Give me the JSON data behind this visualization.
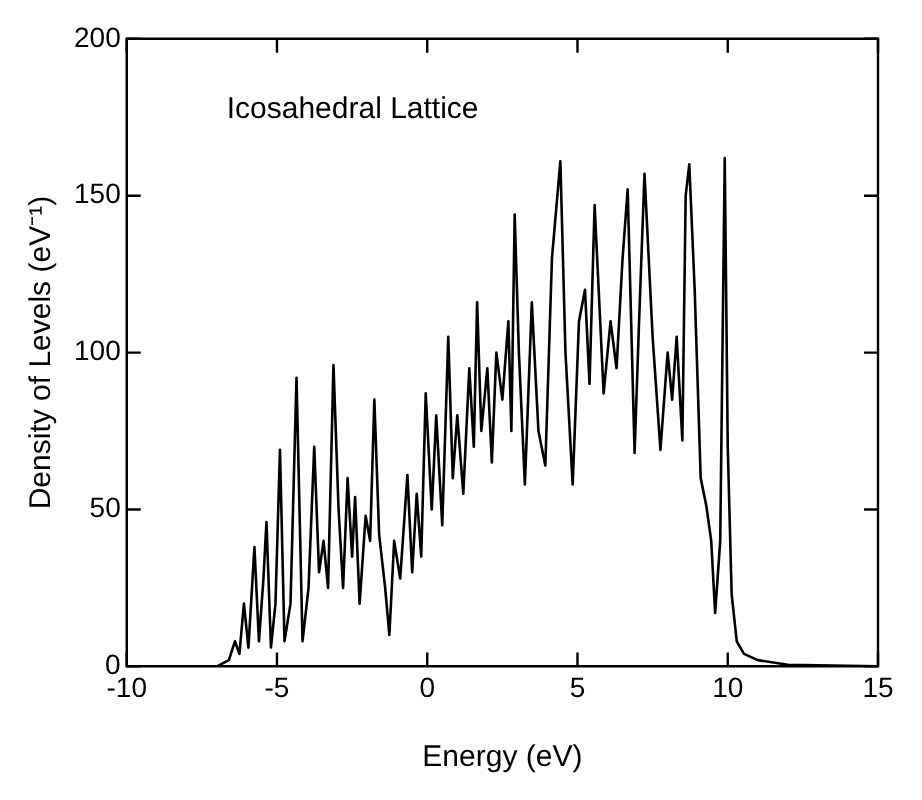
{
  "chart_data": {
    "type": "line",
    "xlabel": "Energy (eV)",
    "ylabel": "Density of Levels (eV⁻¹)",
    "annotations": [
      "Icosahedral Lattice"
    ],
    "xlim": [
      -10,
      15
    ],
    "xticks": [
      -10,
      -5,
      0,
      5,
      10,
      15
    ],
    "ylim": [
      0,
      200
    ],
    "yticks": [
      0,
      50,
      100,
      150,
      200
    ],
    "grid": false,
    "legend": false,
    "marker": "none",
    "line_style": "solid",
    "series": [
      {
        "color": "#000000",
        "x": [
          -10,
          -7,
          -6.6,
          -6.4,
          -6.25,
          -6.1,
          -5.95,
          -5.75,
          -5.6,
          -5.45,
          -5.35,
          -5.2,
          -5.05,
          -4.9,
          -4.75,
          -4.55,
          -4.35,
          -4.15,
          -3.95,
          -3.76,
          -3.6,
          -3.45,
          -3.3,
          -3.12,
          -2.95,
          -2.8,
          -2.65,
          -2.5,
          -2.4,
          -2.25,
          -2.05,
          -1.9,
          -1.76,
          -1.6,
          -1.4,
          -1.26,
          -1.1,
          -0.9,
          -0.66,
          -0.5,
          -0.35,
          -0.2,
          -0.05,
          0.15,
          0.3,
          0.5,
          0.7,
          0.85,
          1.0,
          1.2,
          1.4,
          1.55,
          1.66,
          1.8,
          2.0,
          2.15,
          2.3,
          2.5,
          2.7,
          2.8,
          2.91,
          3.05,
          3.25,
          3.48,
          3.7,
          3.93,
          4.15,
          4.43,
          4.6,
          4.84,
          5.05,
          5.25,
          5.4,
          5.57,
          5.87,
          6.1,
          6.3,
          6.5,
          6.67,
          6.9,
          7.05,
          7.23,
          7.5,
          7.76,
          8.0,
          8.15,
          8.3,
          8.49,
          8.6,
          8.72,
          8.9,
          9.1,
          9.29,
          9.45,
          9.58,
          9.75,
          9.9,
          10.0,
          10.13,
          10.3,
          10.54,
          11,
          12,
          15
        ],
        "values": [
          0,
          0,
          2,
          8,
          4,
          20,
          6,
          38,
          8,
          28,
          46,
          6,
          20,
          69,
          8,
          20,
          92,
          8,
          25,
          70,
          30,
          40,
          25,
          96,
          50,
          25,
          60,
          35,
          54,
          20,
          48,
          40,
          85,
          42,
          25,
          10,
          40,
          28,
          61,
          30,
          55,
          35,
          87,
          50,
          80,
          45,
          105,
          60,
          80,
          55,
          95,
          70,
          116,
          75,
          95,
          65,
          100,
          85,
          110,
          75,
          144,
          100,
          58,
          116,
          75,
          64,
          130,
          161,
          100,
          58,
          110,
          120,
          90,
          147,
          87,
          110,
          95,
          130,
          152,
          68,
          110,
          157,
          105,
          69,
          100,
          85,
          105,
          72,
          150,
          160,
          120,
          60,
          51,
          40,
          17,
          40,
          162,
          70,
          23,
          8,
          4,
          2,
          0.5,
          0
        ]
      }
    ]
  }
}
